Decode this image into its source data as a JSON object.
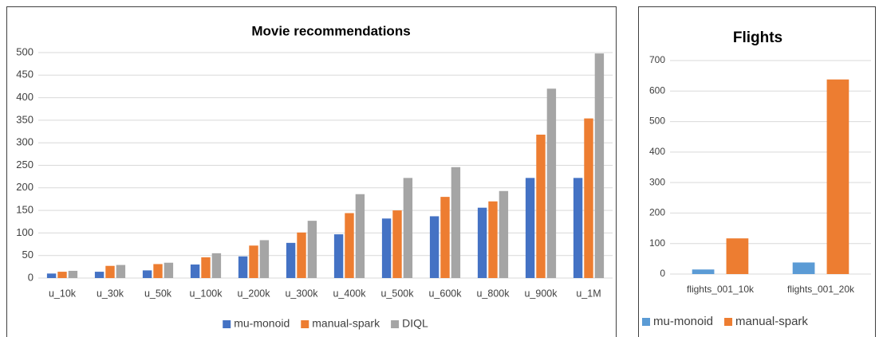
{
  "chart_data": [
    {
      "type": "bar",
      "title": "Movie recommendations",
      "categories": [
        "u_10k",
        "u_30k",
        "u_50k",
        "u_100k",
        "u_200k",
        "u_300k",
        "u_400k",
        "u_500k",
        "u_600k",
        "u_800k",
        "u_900k",
        "u_1M"
      ],
      "series": [
        {
          "name": "mu-monoid",
          "color": "#4472c4",
          "values": [
            10,
            14,
            17,
            30,
            48,
            78,
            97,
            132,
            137,
            156,
            222,
            222
          ]
        },
        {
          "name": "manual-spark",
          "color": "#ed7d31",
          "values": [
            14,
            27,
            31,
            46,
            72,
            101,
            144,
            150,
            180,
            170,
            318,
            354
          ]
        },
        {
          "name": "DIQL",
          "color": "#a5a5a5",
          "values": [
            16,
            29,
            34,
            55,
            84,
            127,
            186,
            222,
            246,
            193,
            420,
            498
          ]
        }
      ],
      "ylim": [
        0,
        500
      ],
      "yticks": [
        0,
        50,
        100,
        150,
        200,
        250,
        300,
        350,
        400,
        450,
        500
      ],
      "grid": true,
      "legend": "bottom"
    },
    {
      "type": "bar",
      "title": "Flights",
      "categories": [
        "flights_001_10k",
        "flights_001_20k"
      ],
      "series": [
        {
          "name": "mu-monoid",
          "color": "#5b9bd5",
          "values": [
            15,
            38
          ]
        },
        {
          "name": "manual-spark",
          "color": "#ed7d31",
          "values": [
            117,
            638
          ]
        }
      ],
      "ylim": [
        0,
        700
      ],
      "yticks": [
        0,
        100,
        200,
        300,
        400,
        500,
        600,
        700
      ],
      "grid": true,
      "legend": "bottom"
    }
  ]
}
